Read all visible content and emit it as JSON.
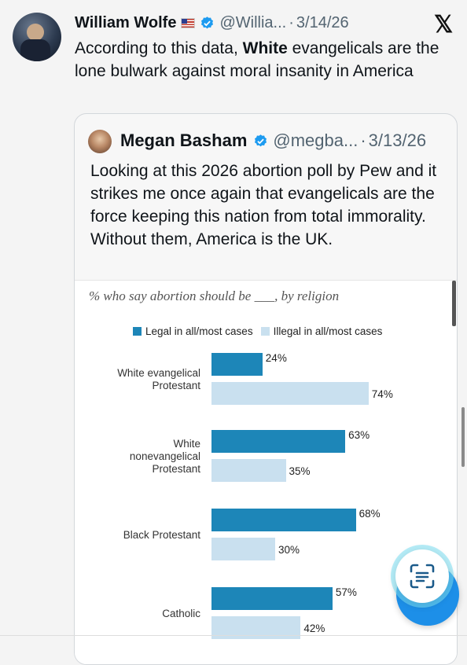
{
  "tweet": {
    "author": "William Wolfe",
    "handle": "@Willia...",
    "dot": "·",
    "date": "3/14/26",
    "text_before": "According to this data, ",
    "text_bold": "White",
    "text_after": " evangelicals are the lone bulwark against moral insanity in America"
  },
  "quote": {
    "author": "Megan Basham",
    "handle": "@megba...",
    "dot": "·",
    "date": "3/13/26",
    "text": "Looking at this 2026 abortion poll by Pew and it strikes me once again that evangelicals are the force keeping this nation from total immorality. Without them, America is the UK."
  },
  "chart_data": {
    "type": "bar",
    "title": "% who say abortion should be ___, by religion",
    "legend": [
      "Legal in all/most cases",
      "Illegal in all/most cases"
    ],
    "categories": [
      "White evangelical Protestant",
      "White nonevangelical Protestant",
      "Black Protestant",
      "Catholic"
    ],
    "series": [
      {
        "name": "Legal in all/most cases",
        "values": [
          24,
          63,
          68,
          57
        ],
        "labels": [
          "24%",
          "63%",
          "68%",
          "57%"
        ],
        "color": "#1d86b8"
      },
      {
        "name": "Illegal in all/most cases",
        "values": [
          74,
          35,
          30,
          42
        ],
        "labels": [
          "74%",
          "35%",
          "30%",
          "42%"
        ],
        "color": "#c9e0ef"
      }
    ],
    "xlim": [
      0,
      100
    ],
    "legend_position": "top",
    "grid": false
  },
  "icons": {
    "logo": "x-logo",
    "verified": "verified-badge-icon",
    "flag": "us-flag-icon",
    "scan": "text-scan-icon"
  },
  "colors": {
    "accent": "#1d8fe8",
    "verified": "#1d9bf0"
  }
}
